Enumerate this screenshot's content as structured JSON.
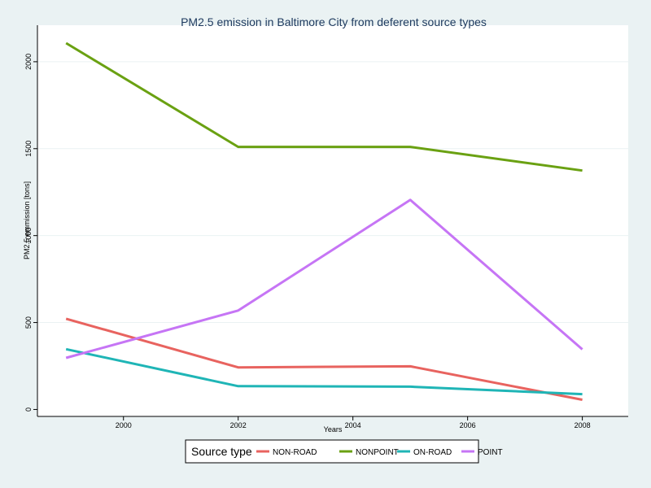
{
  "chart_data": {
    "type": "line",
    "title": "PM2.5 emission in Baltimore City from deferent source types",
    "xlabel": "Years",
    "ylabel": "PM2.5 emmission [tons]",
    "x": [
      1999,
      2002,
      2005,
      2008
    ],
    "xlim": [
      1998.5,
      2008.8
    ],
    "ylim": [
      -40,
      2210
    ],
    "xticks": [
      2000,
      2002,
      2004,
      2006,
      2008
    ],
    "yticks": [
      0,
      500,
      1000,
      1500,
      2000
    ],
    "grid": true,
    "legend": {
      "title": "Source type",
      "position": "bottom"
    },
    "series": [
      {
        "name": "NON-ROAD",
        "color": "#e8635f",
        "values": [
          522,
          242,
          248,
          56
        ]
      },
      {
        "name": "NONPOINT",
        "color": "#6aa112",
        "values": [
          2107,
          1510,
          1510,
          1374
        ]
      },
      {
        "name": "ON-ROAD",
        "color": "#1fb5b6",
        "values": [
          347,
          134,
          131,
          88
        ]
      },
      {
        "name": "POINT",
        "color": "#c675f5",
        "values": [
          297,
          569,
          1205,
          346
        ]
      }
    ]
  }
}
